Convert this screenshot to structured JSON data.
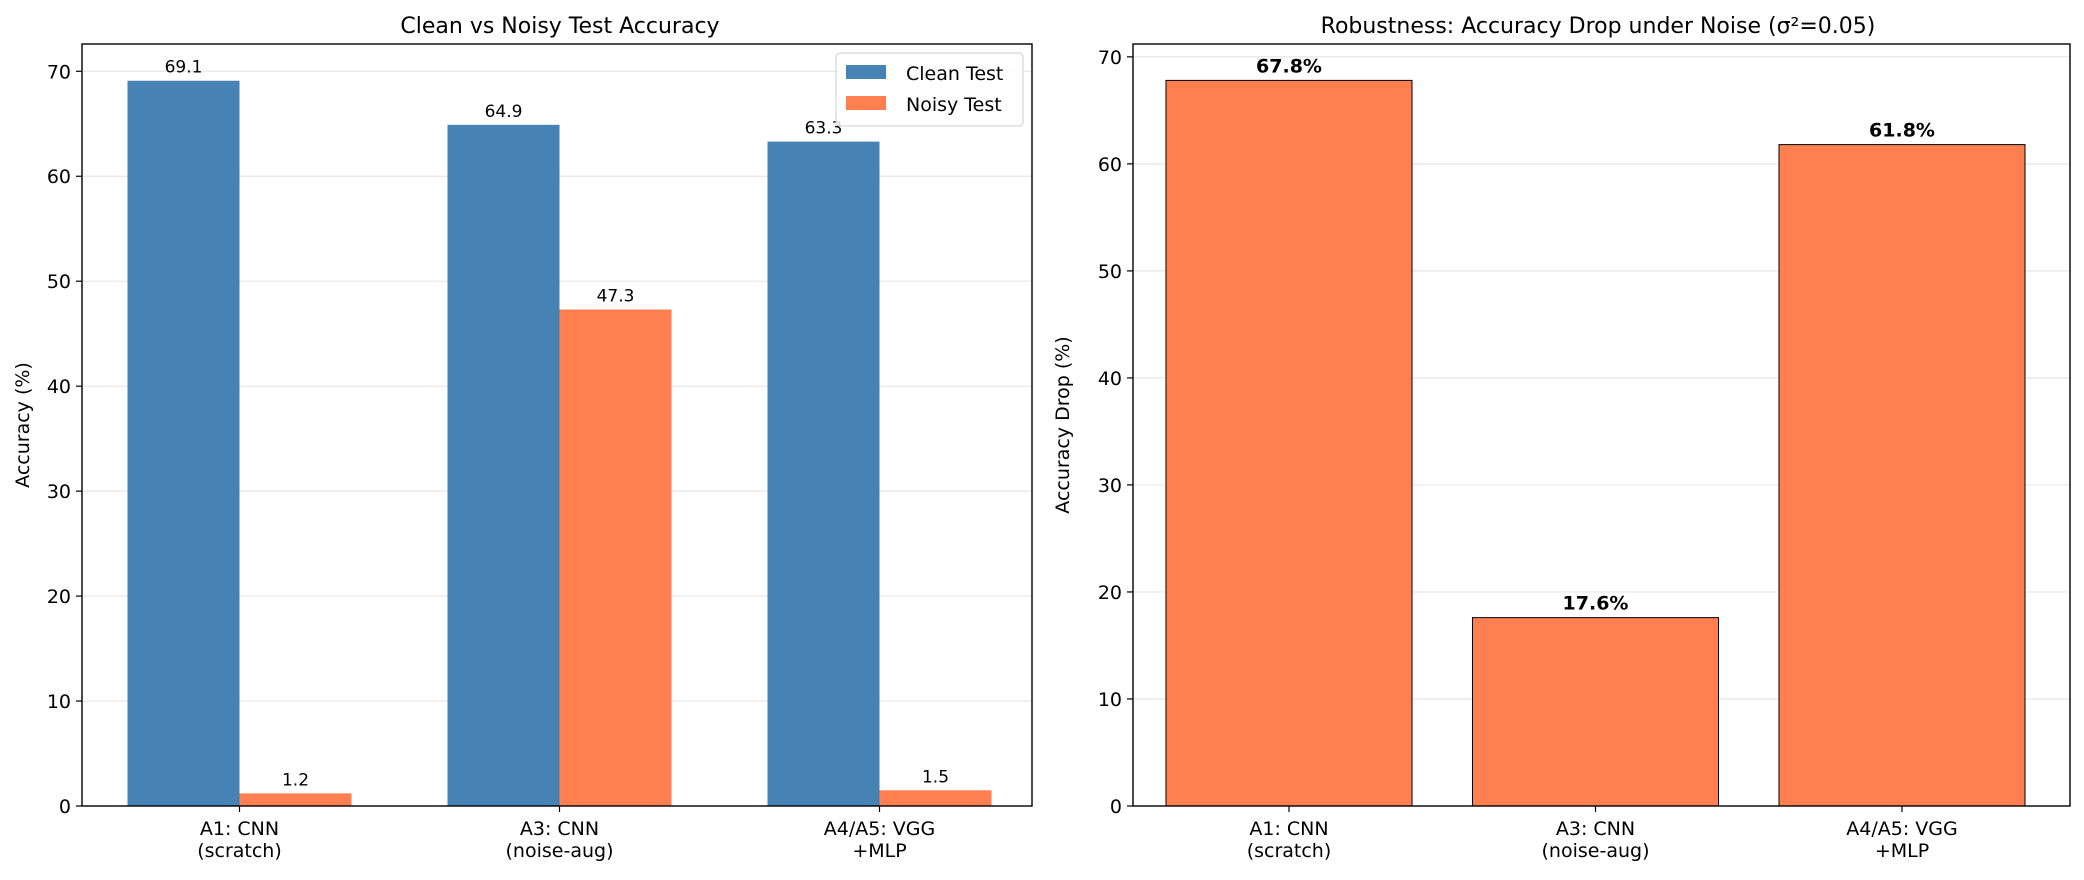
{
  "chart_data": [
    {
      "type": "bar",
      "title": "Clean vs Noisy Test Accuracy",
      "xlabel": "",
      "ylabel": "Accuracy (%)",
      "ylim": [
        0,
        72.6
      ],
      "yticks": [
        0,
        10,
        20,
        30,
        40,
        50,
        60,
        70
      ],
      "grid": "y",
      "legend": "top-right",
      "categories": [
        [
          "A1: CNN",
          "(scratch)"
        ],
        [
          "A3: CNN",
          "(noise-aug)"
        ],
        [
          "A4/A5: VGG",
          "+MLP"
        ]
      ],
      "series": [
        {
          "name": "Clean Test",
          "color": "#4682b4",
          "values": [
            69.1,
            64.9,
            63.3
          ],
          "labels": [
            "69.1",
            "64.9",
            "63.3"
          ]
        },
        {
          "name": "Noisy Test",
          "color": "#ff7f50",
          "values": [
            1.2,
            47.3,
            1.5
          ],
          "labels": [
            "1.2",
            "47.3",
            "1.5"
          ]
        }
      ]
    },
    {
      "type": "bar",
      "title": "Robustness: Accuracy Drop under Noise (σ²=0.05)",
      "xlabel": "",
      "ylabel": "Accuracy Drop (%)",
      "ylim": [
        0,
        71.2
      ],
      "yticks": [
        0,
        10,
        20,
        30,
        40,
        50,
        60,
        70
      ],
      "grid": "y",
      "categories": [
        [
          "A1: CNN",
          "(scratch)"
        ],
        [
          "A3: CNN",
          "(noise-aug)"
        ],
        [
          "A4/A5: VGG",
          "+MLP"
        ]
      ],
      "series": [
        {
          "color": "#ff7f50",
          "edgecolor": "#000000",
          "values": [
            67.8,
            17.6,
            61.8
          ],
          "labels": [
            "67.8%",
            "17.6%",
            "61.8%"
          ]
        }
      ]
    }
  ]
}
